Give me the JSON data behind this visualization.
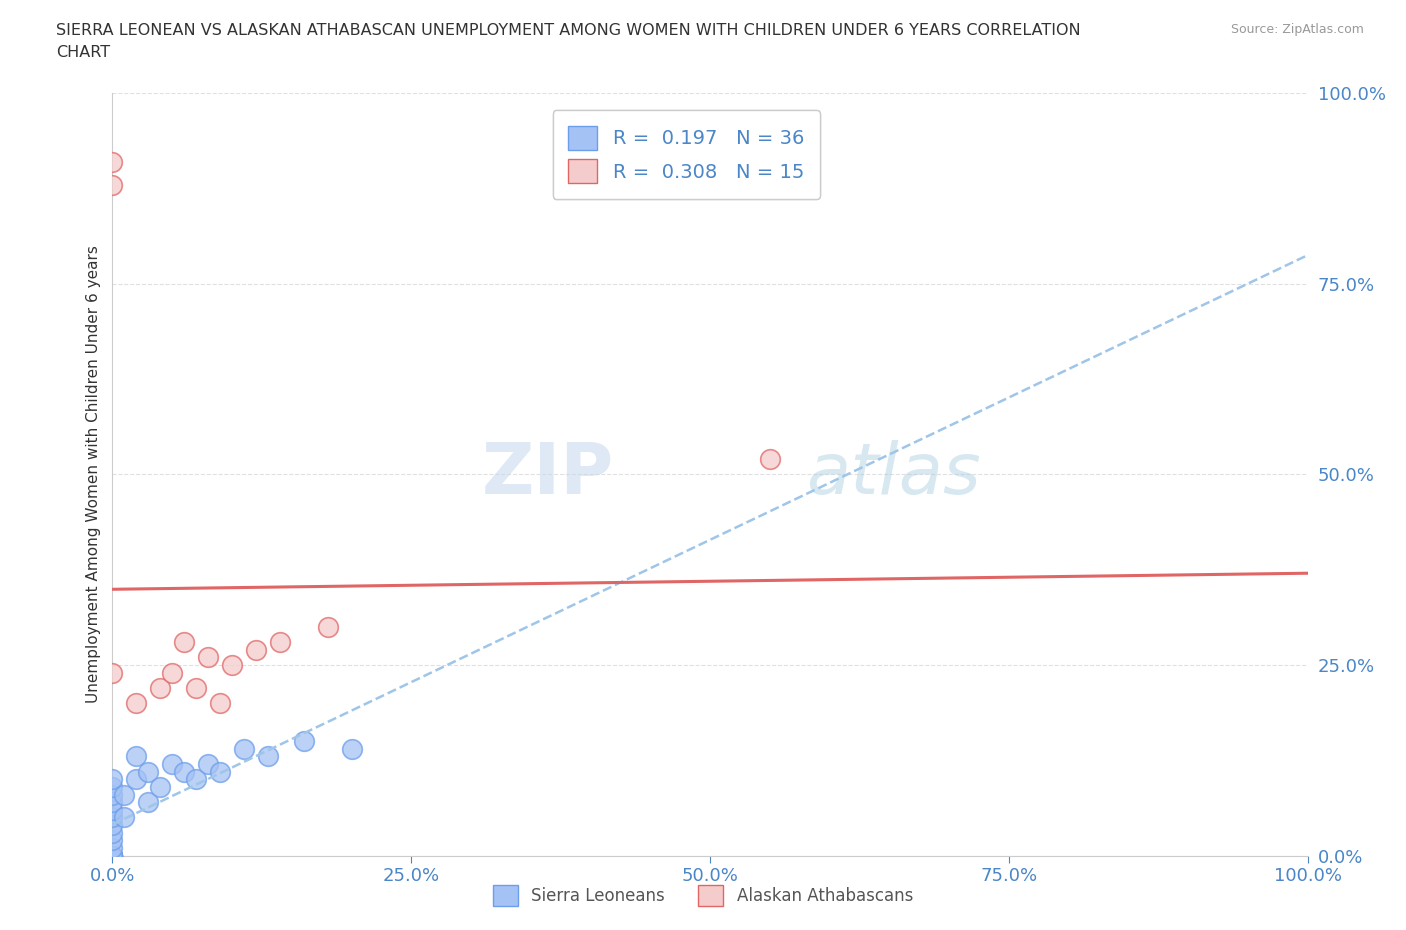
{
  "title_line1": "SIERRA LEONEAN VS ALASKAN ATHABASCAN UNEMPLOYMENT AMONG WOMEN WITH CHILDREN UNDER 6 YEARS CORRELATION",
  "title_line2": "CHART",
  "source": "Source: ZipAtlas.com",
  "ylabel": "Unemployment Among Women with Children Under 6 years",
  "blue_R": 0.197,
  "blue_N": 36,
  "pink_R": 0.308,
  "pink_N": 15,
  "blue_color": "#a4c2f4",
  "pink_color": "#f4cccc",
  "blue_edge_color": "#6d9eeb",
  "pink_edge_color": "#e06666",
  "blue_line_color": "#9fc5e8",
  "pink_line_color": "#e06666",
  "blue_points_x": [
    0.0,
    0.0,
    0.0,
    0.0,
    0.0,
    0.0,
    0.0,
    0.0,
    0.0,
    0.0,
    0.0,
    0.0,
    0.0,
    0.0,
    0.0,
    0.0,
    0.0,
    0.0,
    0.0,
    0.0,
    0.01,
    0.01,
    0.02,
    0.02,
    0.03,
    0.03,
    0.04,
    0.05,
    0.06,
    0.07,
    0.08,
    0.09,
    0.11,
    0.13,
    0.16,
    0.2
  ],
  "blue_points_y": [
    0.0,
    0.0,
    0.0,
    0.0,
    0.0,
    0.0,
    0.0,
    0.0,
    0.0,
    0.0,
    0.01,
    0.02,
    0.03,
    0.04,
    0.05,
    0.06,
    0.07,
    0.08,
    0.09,
    0.1,
    0.05,
    0.08,
    0.1,
    0.13,
    0.07,
    0.11,
    0.09,
    0.12,
    0.11,
    0.1,
    0.12,
    0.11,
    0.14,
    0.13,
    0.15,
    0.14
  ],
  "pink_points_x": [
    0.0,
    0.0,
    0.02,
    0.04,
    0.05,
    0.06,
    0.07,
    0.08,
    0.09,
    0.1,
    0.12,
    0.14,
    0.18,
    0.55,
    0.0
  ],
  "pink_points_y": [
    0.88,
    0.91,
    0.2,
    0.22,
    0.24,
    0.28,
    0.22,
    0.26,
    0.2,
    0.25,
    0.27,
    0.28,
    0.3,
    0.52,
    0.24
  ],
  "watermark_zip": "ZIP",
  "watermark_atlas": "atlas",
  "legend_label_blue": "Sierra Leoneans",
  "legend_label_pink": "Alaskan Athabascans",
  "axis_color": "#4a86c8",
  "background_color": "#ffffff",
  "grid_color": "#d9d9d9",
  "tick_labels": [
    "0.0%",
    "25.0%",
    "50.0%",
    "75.0%",
    "100.0%"
  ],
  "tick_vals": [
    0.0,
    0.25,
    0.5,
    0.75,
    1.0
  ]
}
